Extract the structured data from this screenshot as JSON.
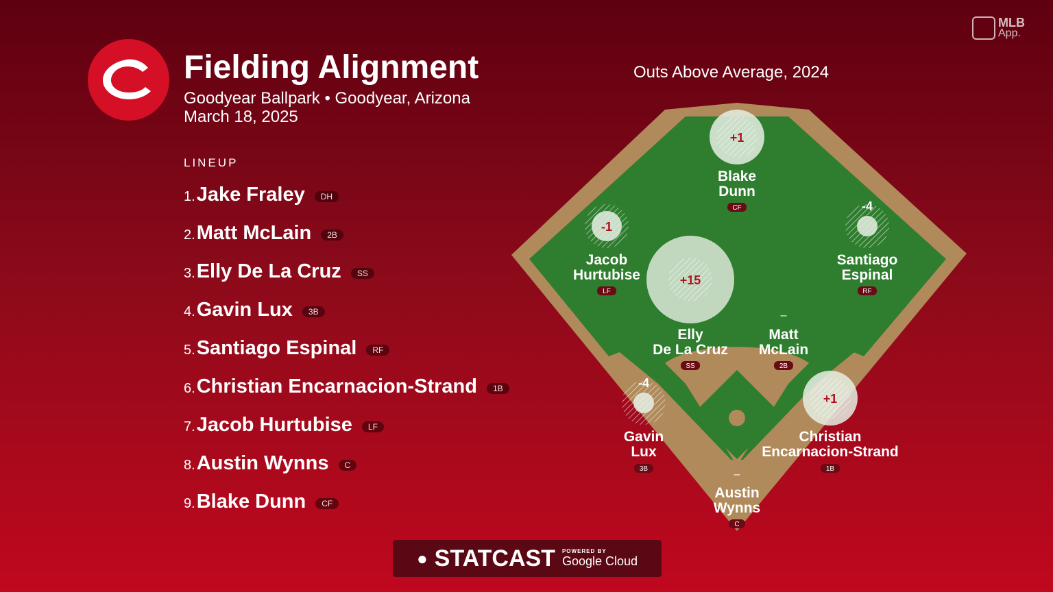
{
  "header": {
    "title": "Fielding Alignment",
    "subtitle": "Goodyear Ballpark • Goodyear, Arizona",
    "date": "March 18, 2025",
    "logo_icon": "reds-c-logo-icon"
  },
  "branding": {
    "mlb_app_top": "MLB",
    "mlb_app_bottom": "App.",
    "statcast": "STATCAST",
    "powered_by": "POWERED BY",
    "google_cloud": "Google Cloud"
  },
  "lineup": {
    "heading": "LINEUP",
    "players": [
      {
        "num": "1.",
        "name": "Jake Fraley",
        "pos": "DH"
      },
      {
        "num": "2.",
        "name": "Matt McLain",
        "pos": "2B"
      },
      {
        "num": "3.",
        "name": "Elly De La Cruz",
        "pos": "SS"
      },
      {
        "num": "4.",
        "name": "Gavin Lux",
        "pos": "3B"
      },
      {
        "num": "5.",
        "name": "Santiago Espinal",
        "pos": "RF"
      },
      {
        "num": "6.",
        "name": "Christian Encarnacion-Strand",
        "pos": "1B"
      },
      {
        "num": "7.",
        "name": "Jacob Hurtubise",
        "pos": "LF"
      },
      {
        "num": "8.",
        "name": "Austin Wynns",
        "pos": "C"
      },
      {
        "num": "9.",
        "name": "Blake Dunn",
        "pos": "CF"
      }
    ]
  },
  "field": {
    "title": "Outs Above Average, 2024",
    "colors": {
      "grass": "#2f7d2f",
      "dirt": "#b08a5a",
      "bubble": "#e6efe4",
      "value": "#b01020"
    },
    "fielders": [
      {
        "line1": "Blake",
        "line2": "Dunn",
        "pos": "CF",
        "oaa": "+1"
      },
      {
        "line1": "Jacob",
        "line2": "Hurtubise",
        "pos": "LF",
        "oaa": "-1"
      },
      {
        "line1": "Santiago",
        "line2": "Espinal",
        "pos": "RF",
        "oaa": "-4"
      },
      {
        "line1": "Elly",
        "line2": "De La Cruz",
        "pos": "SS",
        "oaa": "+15"
      },
      {
        "line1": "Matt",
        "line2": "McLain",
        "pos": "2B",
        "oaa": "–"
      },
      {
        "line1": "Gavin",
        "line2": "Lux",
        "pos": "3B",
        "oaa": "-4"
      },
      {
        "line1": "Christian",
        "line2": "Encarnacion-Strand",
        "pos": "1B",
        "oaa": "+1"
      },
      {
        "line1": "Austin",
        "line2": "Wynns",
        "pos": "C",
        "oaa": "–"
      }
    ]
  }
}
